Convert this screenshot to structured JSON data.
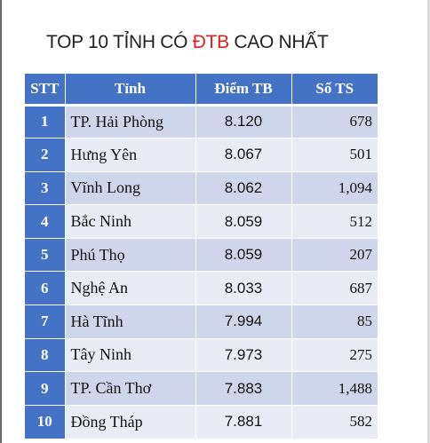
{
  "title": {
    "prefix": "TOP 10 TỈNH CÓ ",
    "highlight": "ĐTB",
    "suffix": " CAO NHẤT",
    "highlight_color": "#e0201c"
  },
  "colors": {
    "header_bg": "#4472c4",
    "row_odd": "#cfd5ea",
    "row_even": "#e9ebf5"
  },
  "table": {
    "headers": [
      "STT",
      "Tỉnh",
      "Điểm TB",
      "Số TS"
    ],
    "rows": [
      {
        "stt": "1",
        "tinh": "TP. Hải Phòng",
        "diem": "8.120",
        "so_ts": "678"
      },
      {
        "stt": "2",
        "tinh": "Hưng Yên",
        "diem": "8.067",
        "so_ts": "501"
      },
      {
        "stt": "3",
        "tinh": "Vĩnh Long",
        "diem": "8.062",
        "so_ts": "1,094"
      },
      {
        "stt": "4",
        "tinh": "Bắc Ninh",
        "diem": "8.059",
        "so_ts": "512"
      },
      {
        "stt": "5",
        "tinh": "Phú Thọ",
        "diem": "8.059",
        "so_ts": "207"
      },
      {
        "stt": "6",
        "tinh": "Nghệ An",
        "diem": "8.033",
        "so_ts": "687"
      },
      {
        "stt": "7",
        "tinh": "Hà Tĩnh",
        "diem": "7.994",
        "so_ts": "85"
      },
      {
        "stt": "8",
        "tinh": "Tây Ninh",
        "diem": "7.973",
        "so_ts": "275"
      },
      {
        "stt": "9",
        "tinh": "TP. Cần Thơ",
        "diem": "7.883",
        "so_ts": "1,488"
      },
      {
        "stt": "10",
        "tinh": "Đồng Tháp",
        "diem": "7.881",
        "so_ts": "582"
      }
    ]
  }
}
